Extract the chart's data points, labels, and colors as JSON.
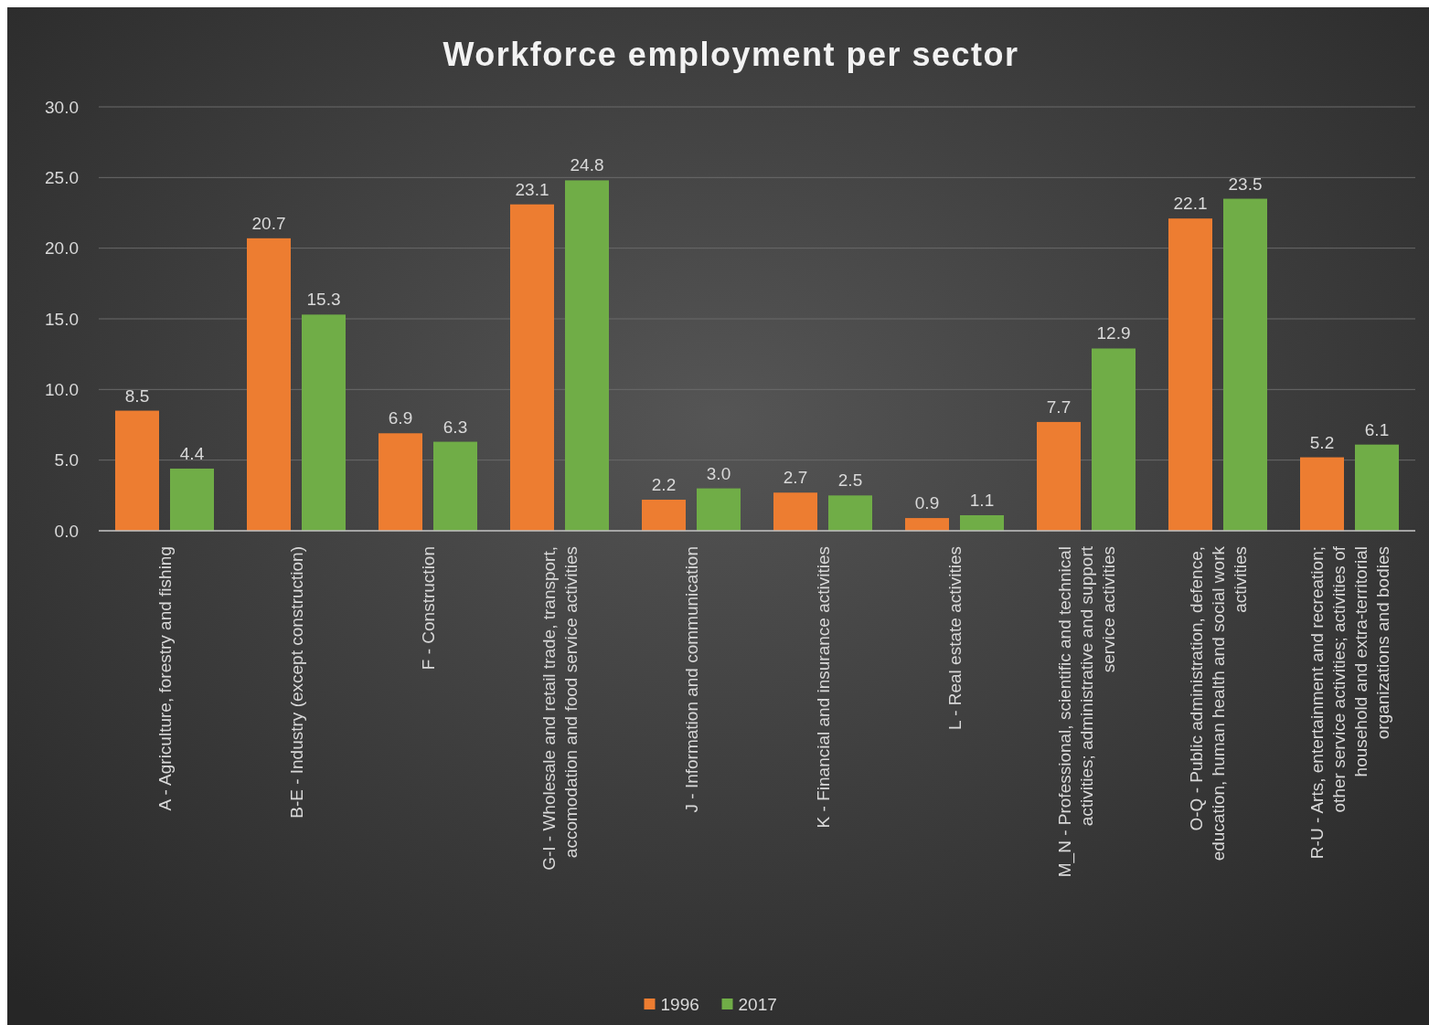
{
  "chart_data": {
    "type": "bar",
    "title": "Workforce employment per sector",
    "categories": [
      "A - Agriculture, forestry and fishing",
      "B-E - Industry (except construction)",
      "F - Construction",
      "G-I - Wholesale and retail trade, transport, accomodation and food service activities",
      "J - Information and communication",
      "K - Financial and insurance activities",
      "L - Real estate activities",
      "M_N - Professional, scientific and technical activities; administrative and support service activities",
      "O-Q - Public administration, defence, education, human health and social work activities",
      "R-U - Arts, entertainment and recreation; other service activities; activities of household and extra-territorial organizations and bodies"
    ],
    "series": [
      {
        "name": "1996",
        "color": "#ed7d31",
        "values": [
          8.5,
          20.7,
          6.9,
          23.1,
          2.2,
          2.7,
          0.9,
          7.7,
          22.1,
          5.2
        ],
        "value_labels": [
          "8.5",
          "20.7",
          "6.9",
          "23.1",
          "2.2",
          "2.7",
          "0.9",
          "7.7",
          "22.1",
          "5.2"
        ]
      },
      {
        "name": "2017",
        "color": "#70ad47",
        "values": [
          4.4,
          15.3,
          6.3,
          24.8,
          3.0,
          2.5,
          1.1,
          12.9,
          23.5,
          6.1
        ],
        "value_labels": [
          "4.4",
          "15.3",
          "6.3",
          "24.8",
          "3.0",
          "2.5",
          "1.1",
          "12.9",
          "23.5",
          "6.1"
        ]
      }
    ],
    "ylim": [
      0,
      30
    ],
    "yticks": [
      {
        "value": 0,
        "label": "0.0"
      },
      {
        "value": 5,
        "label": "5.0"
      },
      {
        "value": 10,
        "label": "10.0"
      },
      {
        "value": 15,
        "label": "15.0"
      },
      {
        "value": 20,
        "label": "20.0"
      },
      {
        "value": 25,
        "label": "25.0"
      },
      {
        "value": 30,
        "label": "30.0"
      }
    ],
    "grid": "y",
    "legend": "bottom"
  }
}
